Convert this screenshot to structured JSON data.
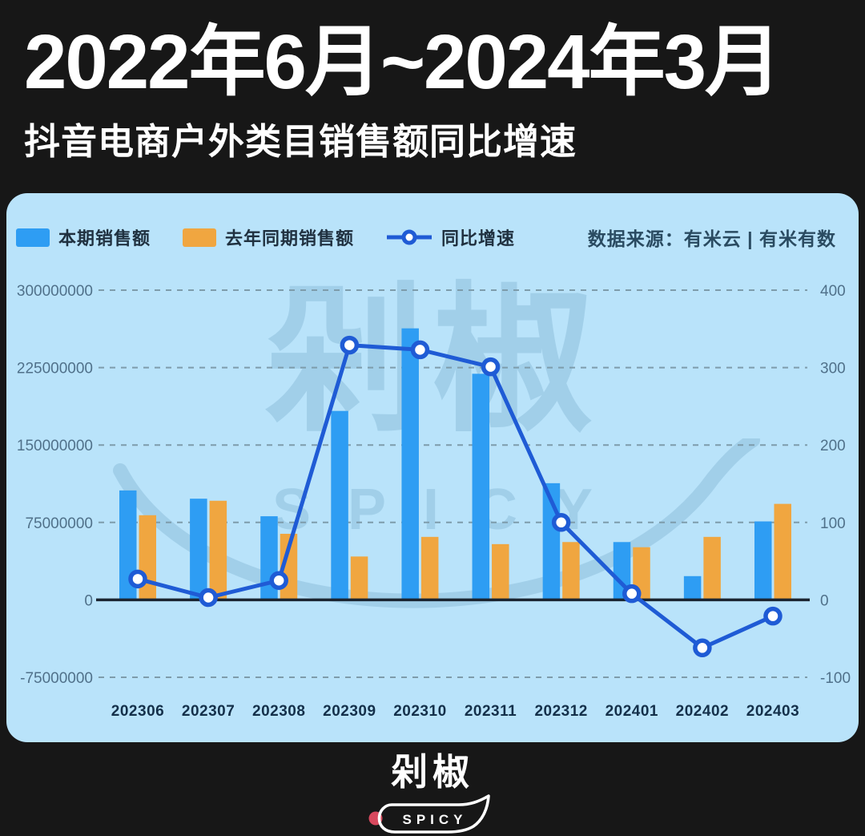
{
  "header": {
    "title": "2022年6月~2024年3月",
    "subtitle": "抖音电商户外类目销售额同比增速"
  },
  "legend": {
    "current_label": "本期销售额",
    "previous_label": "去年同期销售额",
    "growth_label": "同比增速",
    "source": "数据来源：有米云 | 有米有数"
  },
  "watermark": {
    "text": "剁椒",
    "subtext": "SPICY"
  },
  "footer": {
    "logo_text": "剁椒",
    "logo_subtext": "SPICY"
  },
  "colors": {
    "page_bg": "#171717",
    "card_bg": "#b9e3fa",
    "bar_current": "#2e9df3",
    "bar_previous": "#f0a640",
    "growth_line": "#1f5bd5",
    "zero_axis": "#1b2531",
    "gridline": "#7e9cab",
    "y_tick_text": "#50718a",
    "x_tick_text": "#14304a",
    "logo_dot_red": "#d8495e"
  },
  "chart_data": {
    "type": "bar+line",
    "categories": [
      "202306",
      "202307",
      "202308",
      "202309",
      "202310",
      "202311",
      "202312",
      "202401",
      "202402",
      "202403"
    ],
    "series": [
      {
        "name": "本期销售额",
        "type": "bar",
        "axis": "left",
        "color": "#2e9df3",
        "values": [
          106000000,
          98000000,
          81000000,
          183000000,
          263000000,
          219000000,
          113000000,
          56000000,
          23000000,
          76000000
        ]
      },
      {
        "name": "去年同期销售额",
        "type": "bar",
        "axis": "left",
        "color": "#f0a640",
        "values": [
          82000000,
          96000000,
          64000000,
          42000000,
          61000000,
          54000000,
          56000000,
          51000000,
          61000000,
          93000000
        ]
      },
      {
        "name": "同比增速",
        "type": "line",
        "axis": "right",
        "color": "#1f5bd5",
        "values": [
          27,
          3,
          25,
          329,
          323,
          301,
          100,
          8,
          -62,
          -21
        ]
      }
    ],
    "left_axis": {
      "ticks": [
        300000000,
        225000000,
        150000000,
        75000000,
        0,
        -75000000
      ],
      "label": ""
    },
    "right_axis": {
      "ticks": [
        400,
        300,
        200,
        100,
        0,
        -100
      ],
      "label": ""
    },
    "title": "2022年6月~2024年3月",
    "subtitle": "抖音电商户外类目销售额同比增速",
    "xlabel": "",
    "ylabel": "",
    "grid": "dashed-horizontal",
    "legend_position": "top-left"
  }
}
